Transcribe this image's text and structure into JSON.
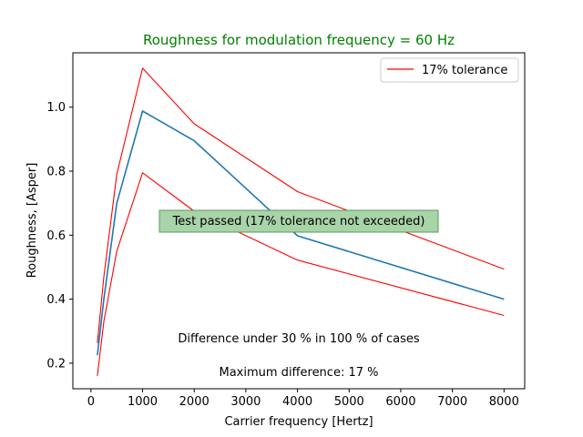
{
  "chart_data": {
    "type": "line",
    "title": "Roughness for modulation frequency = 60 Hz",
    "title_color": "#008000",
    "xlabel": "Carrier frequency [Hertz]",
    "ylabel": "Roughness, [Asper]",
    "xlim": [
      -350,
      8400
    ],
    "ylim": [
      0.12,
      1.17
    ],
    "xticks": [
      0,
      1000,
      2000,
      3000,
      4000,
      5000,
      6000,
      7000,
      8000
    ],
    "yticks": [
      0.2,
      0.4,
      0.6,
      0.8,
      1.0
    ],
    "ytick_labels": [
      "0.2",
      "0.4",
      "0.6",
      "0.8",
      "1.0"
    ],
    "grid": false,
    "legend": {
      "position": "upper-right",
      "entries": [
        {
          "label": "17% tolerance",
          "color": "#ff0000"
        }
      ]
    },
    "series": [
      {
        "color": "#1f77b4",
        "x": [
          125,
          250,
          500,
          1000,
          2000,
          4000,
          8000
        ],
        "y": [
          0.225,
          0.4,
          0.7,
          0.988,
          0.895,
          0.598,
          0.4
        ]
      },
      {
        "name": "17% tolerance",
        "color": "#ff0000",
        "x": [
          125,
          250,
          500,
          1000,
          2000,
          4000,
          8000
        ],
        "y": [
          0.263,
          0.47,
          0.79,
          1.122,
          0.948,
          0.736,
          0.494
        ]
      },
      {
        "color": "#ff0000",
        "x": [
          125,
          250,
          500,
          1000,
          2000,
          4000,
          8000
        ],
        "y": [
          0.16,
          0.33,
          0.55,
          0.795,
          0.675,
          0.522,
          0.349
        ]
      }
    ],
    "annotations": {
      "status_box": {
        "text": "Test passed (17% tolerance not exceeded)",
        "fill": "#a9d3a9",
        "edge": "#5a9a5a"
      },
      "difference_text": "Difference under 30 % in 100 % of cases",
      "max_difference_text": "Maximum difference: 17 %"
    }
  }
}
